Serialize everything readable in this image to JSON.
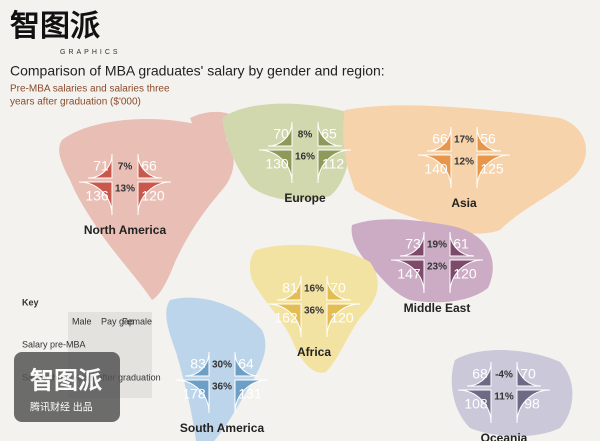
{
  "logo": {
    "name": "智图派",
    "sub": "GRAPHICS"
  },
  "title": "Comparison of MBA graduates' salary by gender and region:",
  "subtitle": [
    "Pre-MBA salaries and salaries three",
    "years after graduation ($'000)"
  ],
  "regions": [
    {
      "name": "North America",
      "pre": {
        "male": "71",
        "gap": "7%",
        "female": "66"
      },
      "post": {
        "male": "136",
        "gap": "13%",
        "female": "120"
      }
    },
    {
      "name": "Europe",
      "pre": {
        "male": "70",
        "gap": "8%",
        "female": "65"
      },
      "post": {
        "male": "130",
        "gap": "16%",
        "female": "112"
      }
    },
    {
      "name": "Asia",
      "pre": {
        "male": "66",
        "gap": "17%",
        "female": "56"
      },
      "post": {
        "male": "140",
        "gap": "12%",
        "female": "125"
      }
    },
    {
      "name": "Middle East",
      "pre": {
        "male": "73",
        "gap": "19%",
        "female": "61"
      },
      "post": {
        "male": "147",
        "gap": "23%",
        "female": "120"
      }
    },
    {
      "name": "Africa",
      "pre": {
        "male": "81",
        "gap": "16%",
        "female": "70"
      },
      "post": {
        "male": "162",
        "gap": "36%",
        "female": "120"
      }
    },
    {
      "name": "South America",
      "pre": {
        "male": "83",
        "gap": "30%",
        "female": "64"
      },
      "post": {
        "male": "178",
        "gap": "36%",
        "female": "131"
      }
    },
    {
      "name": "Oceania",
      "pre": {
        "male": "68",
        "gap": "-4%",
        "female": "70"
      },
      "post": {
        "male": "108",
        "gap": "11%",
        "female": "98"
      }
    }
  ],
  "key": {
    "title": "Key",
    "columns": [
      "Male",
      "Pay gap",
      "Female"
    ],
    "rows": [
      "Salary pre-MBA",
      "Salary three years after graduation"
    ]
  },
  "watermark": {
    "name": "智图派",
    "sub": "腾讯财经 出品"
  }
}
